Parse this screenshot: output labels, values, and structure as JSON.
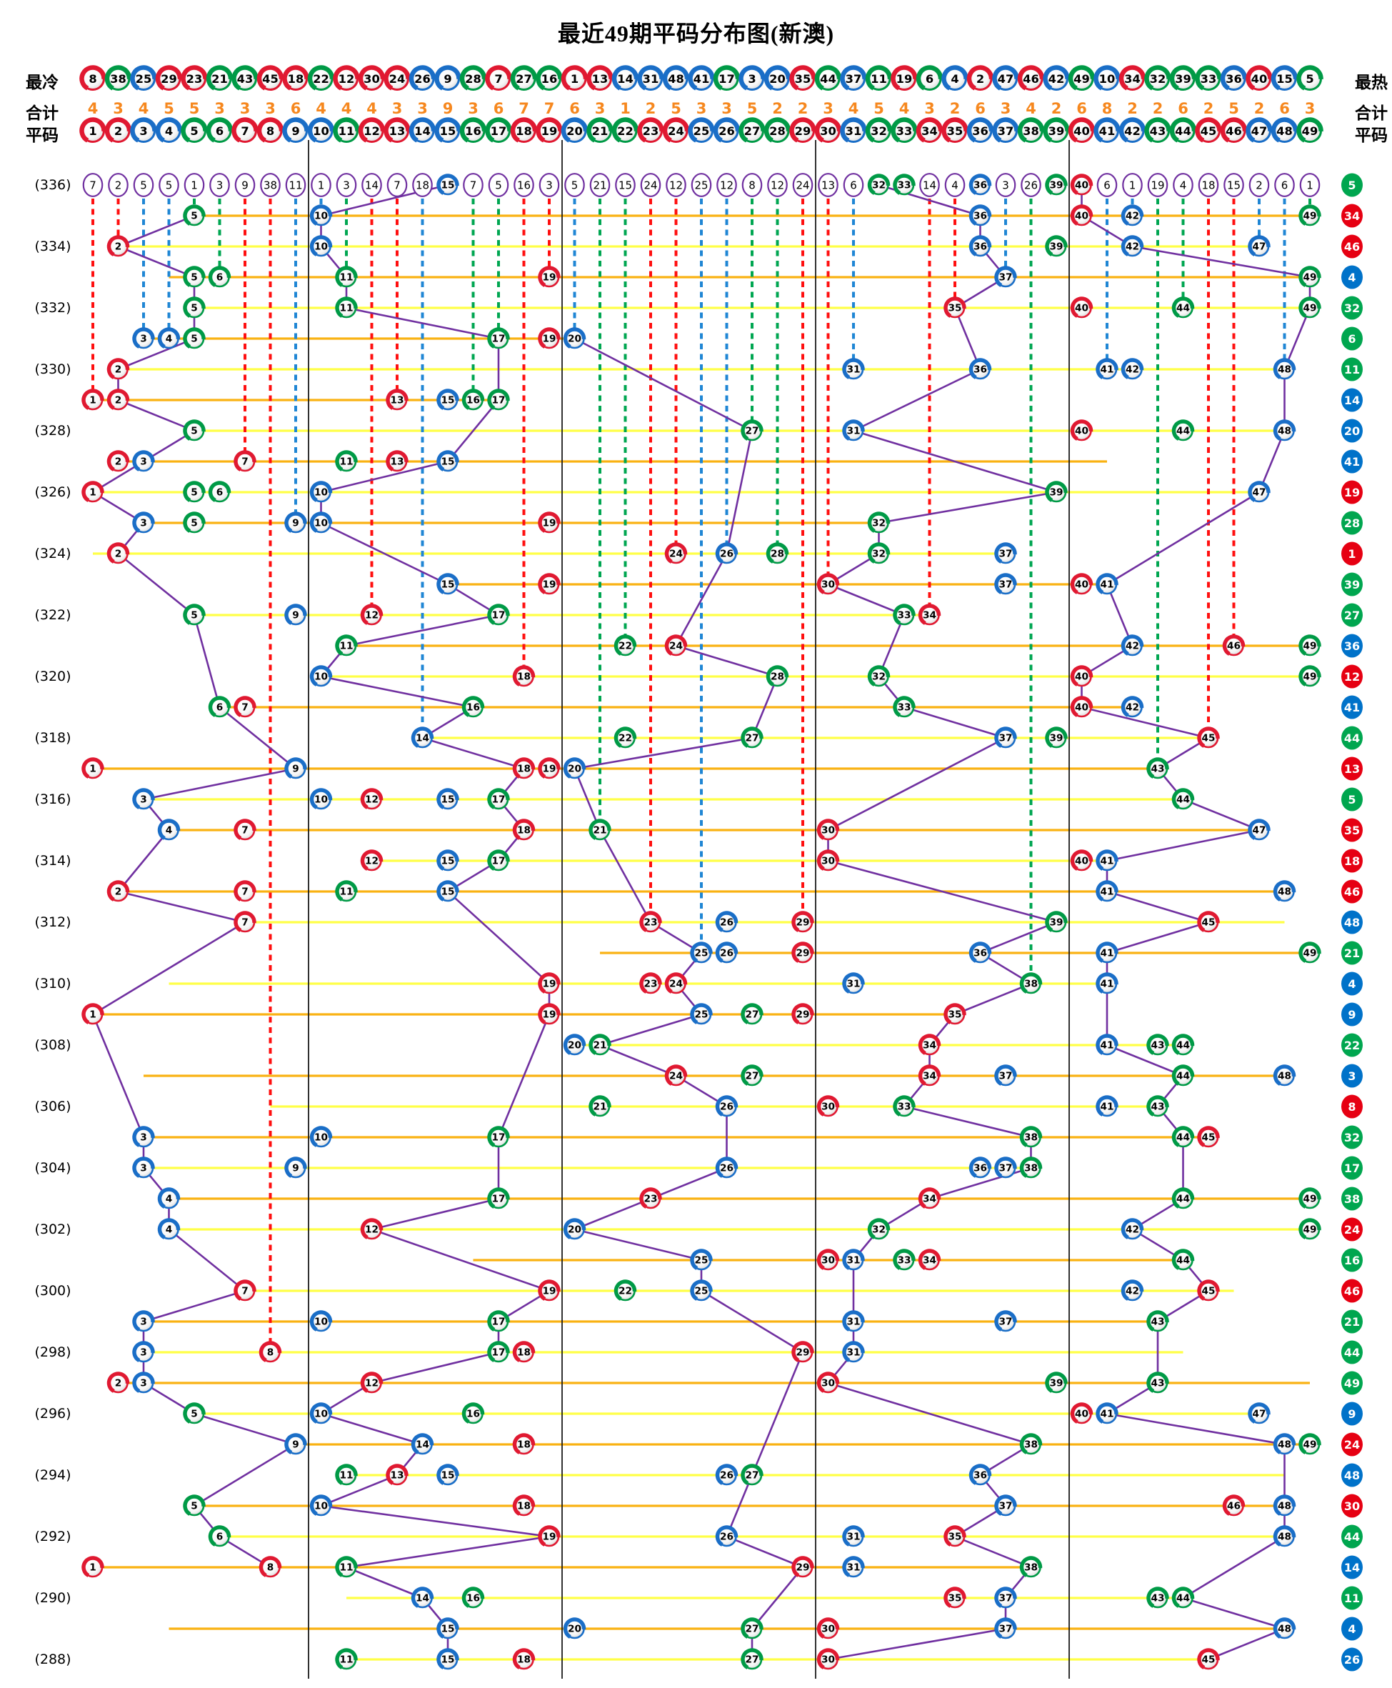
{
  "title": "最近49期平码分布图(新澳)",
  "labels": {
    "coldest": "最冷",
    "hottest": "最热",
    "total": "合计",
    "pingma": "平码"
  },
  "chart_data": {
    "type": "scatter",
    "description": "Distribution chart of the 6 drawn numbers (平码) per lottery period, columns = numbers 1-49, rows = periods (336) down to (288); right badges = special number per period; top row = current miss count per number",
    "columns": [
      1,
      2,
      3,
      4,
      5,
      6,
      7,
      8,
      9,
      10,
      11,
      12,
      13,
      14,
      15,
      16,
      17,
      18,
      19,
      20,
      21,
      22,
      23,
      24,
      25,
      26,
      27,
      28,
      29,
      30,
      31,
      32,
      33,
      34,
      35,
      36,
      37,
      38,
      39,
      40,
      41,
      42,
      43,
      44,
      45,
      46,
      47,
      48,
      49
    ],
    "coldest_order": [
      8,
      38,
      25,
      29,
      23,
      21,
      43,
      45,
      18,
      22,
      12,
      30,
      24,
      26,
      9,
      28,
      7,
      27,
      16,
      1,
      13,
      14,
      31,
      48,
      41,
      17,
      3,
      20,
      35,
      44,
      37,
      11,
      19,
      6,
      4,
      2,
      47,
      46,
      42,
      49,
      10,
      34,
      32,
      39,
      33,
      36,
      40,
      15,
      5
    ],
    "totals": [
      4,
      3,
      4,
      5,
      5,
      3,
      3,
      3,
      6,
      4,
      4,
      4,
      3,
      3,
      9,
      3,
      6,
      7,
      7,
      6,
      3,
      1,
      2,
      5,
      3,
      3,
      5,
      2,
      2,
      3,
      4,
      5,
      4,
      3,
      2,
      6,
      3,
      4,
      2,
      6,
      8,
      2,
      2,
      6,
      2,
      5,
      2,
      6,
      3
    ],
    "miss_row": {
      "label": "(336)",
      "special": 5,
      "values": [
        7,
        2,
        5,
        5,
        1,
        3,
        9,
        38,
        11,
        1,
        3,
        14,
        7,
        18,
        15,
        7,
        5,
        16,
        3,
        5,
        21,
        15,
        24,
        12,
        25,
        12,
        8,
        12,
        24,
        13,
        6,
        32,
        33,
        14,
        4,
        36,
        3,
        26,
        39,
        40,
        6,
        1,
        19,
        4,
        18,
        15,
        2,
        6,
        1
      ],
      "drawn": [
        15,
        32,
        33,
        36,
        39,
        40
      ]
    },
    "rows": [
      {
        "label": null,
        "balls": [
          5,
          10,
          36,
          40,
          42,
          49
        ],
        "special": 34
      },
      {
        "label": "(334)",
        "balls": [
          2,
          10,
          36,
          39,
          42,
          47
        ],
        "special": 46
      },
      {
        "label": null,
        "balls": [
          5,
          6,
          11,
          19,
          37,
          49
        ],
        "special": 4
      },
      {
        "label": "(332)",
        "balls": [
          5,
          11,
          35,
          40,
          44,
          49
        ],
        "special": 32
      },
      {
        "label": null,
        "balls": [
          3,
          4,
          5,
          17,
          19,
          20
        ],
        "special": 6
      },
      {
        "label": "(330)",
        "balls": [
          2,
          31,
          36,
          41,
          42,
          48
        ],
        "special": 11
      },
      {
        "label": null,
        "balls": [
          1,
          2,
          13,
          15,
          16,
          17
        ],
        "special": 14
      },
      {
        "label": "(328)",
        "balls": [
          5,
          27,
          31,
          40,
          44,
          48
        ],
        "special": 20
      },
      {
        "label": null,
        "balls": [
          2,
          3,
          7,
          11,
          13,
          15
        ],
        "special": 41
      },
      {
        "label": "(326)",
        "balls": [
          1,
          5,
          6,
          10,
          39,
          47
        ],
        "special": 19
      },
      {
        "label": null,
        "balls": [
          3,
          5,
          9,
          10,
          19,
          32
        ],
        "special": 28
      },
      {
        "label": "(324)",
        "balls": [
          2,
          24,
          26,
          28,
          32,
          37
        ],
        "special": 1
      },
      {
        "label": null,
        "balls": [
          15,
          19,
          30,
          37,
          40,
          41
        ],
        "special": 39
      },
      {
        "label": "(322)",
        "balls": [
          5,
          9,
          12,
          17,
          33,
          34
        ],
        "special": 27
      },
      {
        "label": null,
        "balls": [
          11,
          22,
          24,
          42,
          46,
          49
        ],
        "special": 36
      },
      {
        "label": "(320)",
        "balls": [
          10,
          18,
          28,
          32,
          40,
          49
        ],
        "special": 12
      },
      {
        "label": null,
        "balls": [
          6,
          7,
          16,
          33,
          40,
          42
        ],
        "special": 41
      },
      {
        "label": "(318)",
        "balls": [
          14,
          22,
          27,
          37,
          39,
          45
        ],
        "special": 44
      },
      {
        "label": null,
        "balls": [
          1,
          9,
          18,
          19,
          20,
          43
        ],
        "special": 13
      },
      {
        "label": "(316)",
        "balls": [
          3,
          10,
          12,
          15,
          17,
          44
        ],
        "special": 5
      },
      {
        "label": null,
        "balls": [
          4,
          7,
          18,
          21,
          30,
          47
        ],
        "special": 35
      },
      {
        "label": "(314)",
        "balls": [
          12,
          15,
          17,
          30,
          40,
          41
        ],
        "special": 18
      },
      {
        "label": null,
        "balls": [
          2,
          7,
          11,
          15,
          41,
          48
        ],
        "special": 46
      },
      {
        "label": "(312)",
        "balls": [
          7,
          23,
          26,
          29,
          39,
          45
        ],
        "special": 48
      },
      {
        "label": null,
        "balls": [
          25,
          26,
          29,
          36,
          41,
          49
        ],
        "special": 21
      },
      {
        "label": "(310)",
        "balls": [
          19,
          23,
          24,
          31,
          38,
          41
        ],
        "special": 4
      },
      {
        "label": null,
        "balls": [
          1,
          19,
          25,
          27,
          29,
          35
        ],
        "special": 9
      },
      {
        "label": "(308)",
        "balls": [
          20,
          21,
          34,
          41,
          43,
          44
        ],
        "special": 22
      },
      {
        "label": null,
        "balls": [
          24,
          27,
          34,
          37,
          44,
          48
        ],
        "special": 3
      },
      {
        "label": "(306)",
        "balls": [
          21,
          26,
          30,
          33,
          41,
          43
        ],
        "special": 8
      },
      {
        "label": null,
        "balls": [
          3,
          10,
          17,
          38,
          44,
          45
        ],
        "special": 32
      },
      {
        "label": "(304)",
        "balls": [
          3,
          9,
          26,
          36,
          37,
          38
        ],
        "special": 17
      },
      {
        "label": null,
        "balls": [
          4,
          17,
          23,
          34,
          44,
          49
        ],
        "special": 38
      },
      {
        "label": "(302)",
        "balls": [
          4,
          12,
          20,
          32,
          42,
          49
        ],
        "special": 24
      },
      {
        "label": null,
        "balls": [
          25,
          30,
          31,
          33,
          34,
          44
        ],
        "special": 16
      },
      {
        "label": "(300)",
        "balls": [
          7,
          19,
          22,
          25,
          42,
          45
        ],
        "special": 46
      },
      {
        "label": null,
        "balls": [
          3,
          10,
          17,
          31,
          37,
          43
        ],
        "special": 21
      },
      {
        "label": "(298)",
        "balls": [
          3,
          8,
          17,
          18,
          29,
          31
        ],
        "special": 44
      },
      {
        "label": null,
        "balls": [
          2,
          3,
          12,
          30,
          39,
          43
        ],
        "special": 49
      },
      {
        "label": "(296)",
        "balls": [
          5,
          10,
          16,
          40,
          41,
          47
        ],
        "special": 9
      },
      {
        "label": null,
        "balls": [
          9,
          14,
          18,
          38,
          48,
          49
        ],
        "special": 24
      },
      {
        "label": "(294)",
        "balls": [
          11,
          13,
          15,
          26,
          27,
          36
        ],
        "special": 48
      },
      {
        "label": null,
        "balls": [
          5,
          10,
          18,
          37,
          46,
          48
        ],
        "special": 30
      },
      {
        "label": "(292)",
        "balls": [
          6,
          19,
          26,
          31,
          35,
          48
        ],
        "special": 44
      },
      {
        "label": null,
        "balls": [
          1,
          8,
          11,
          29,
          31,
          38
        ],
        "special": 14
      },
      {
        "label": "(290)",
        "balls": [
          14,
          16,
          35,
          37,
          43,
          44
        ],
        "special": 11
      },
      {
        "label": null,
        "balls": [
          15,
          20,
          27,
          30,
          37,
          48
        ],
        "special": 4
      },
      {
        "label": "(288)",
        "balls": [
          11,
          15,
          18,
          27,
          30,
          45
        ],
        "special": 26
      }
    ],
    "waves": {
      "red": [
        1,
        2,
        7,
        8,
        12,
        13,
        18,
        19,
        23,
        24,
        29,
        30,
        34,
        35,
        40,
        45,
        46
      ],
      "blue": [
        3,
        4,
        9,
        10,
        14,
        15,
        20,
        25,
        26,
        31,
        36,
        37,
        41,
        42,
        47,
        48
      ],
      "green": [
        5,
        6,
        11,
        16,
        17,
        21,
        22,
        27,
        28,
        32,
        33,
        38,
        39,
        43,
        44,
        49
      ]
    },
    "groups": [
      [
        1,
        9
      ],
      [
        10,
        19
      ],
      [
        20,
        29
      ],
      [
        30,
        39
      ],
      [
        40,
        49
      ]
    ],
    "colors": {
      "ball_red": "#e01931",
      "ball_blue": "#1a6ec7",
      "ball_green": "#009a46",
      "badge_red": "#e60012",
      "badge_blue": "#0072c9",
      "badge_green": "#00a64f",
      "dash_red": "#ff0f0f",
      "dash_blue": "#1f86d4",
      "dash_green": "#00a651",
      "trend_purple": "#7030a0",
      "row_line_yellow": "#ffff47",
      "row_line_orange": "#f9b213",
      "miss_circle_stroke": "#7030a0",
      "totals_text": "#f6881f",
      "separator": "#1a1a1a"
    }
  }
}
